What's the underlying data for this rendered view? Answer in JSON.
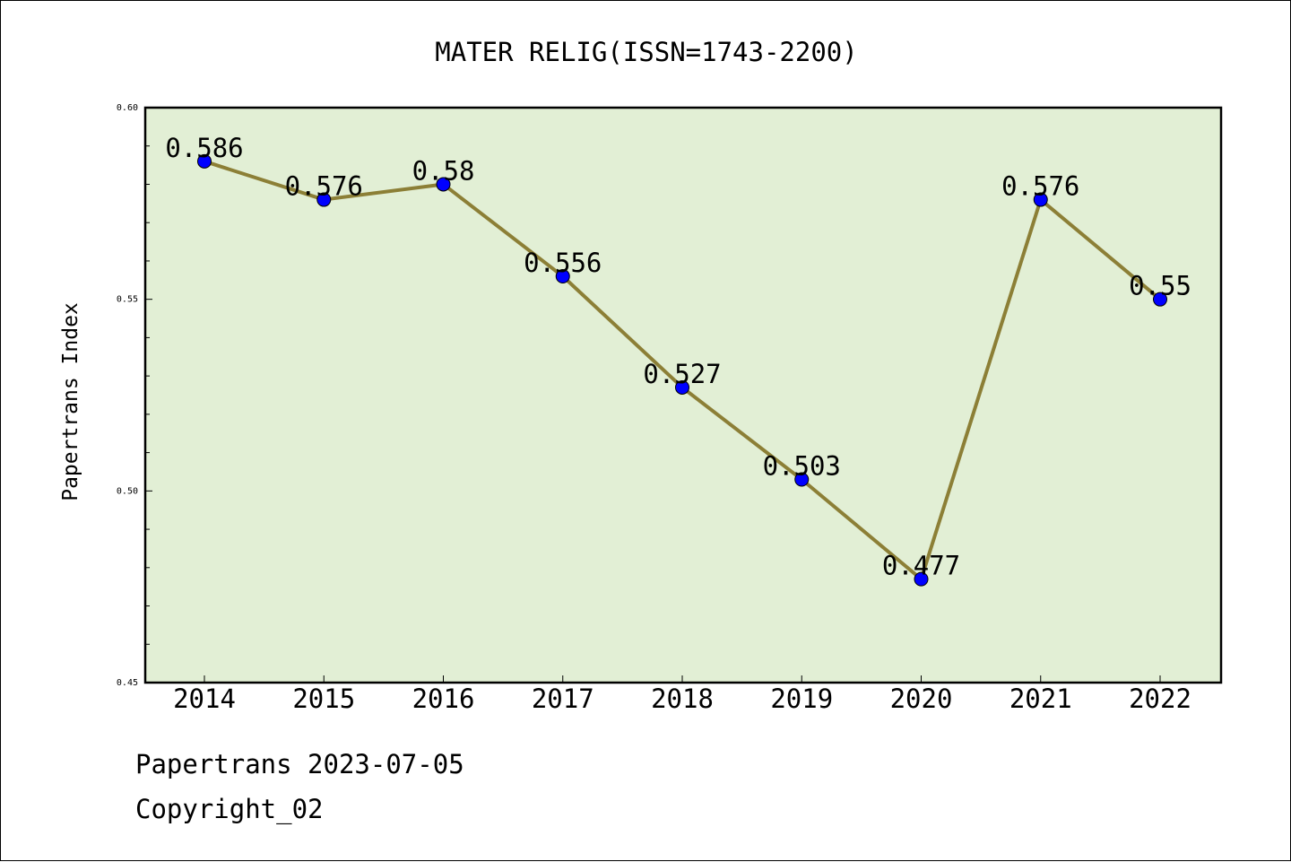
{
  "chart_data": {
    "type": "line",
    "title": "MATER RELIG(ISSN=1743-2200)",
    "xlabel": "",
    "ylabel": "Papertrans Index",
    "categories": [
      "2014",
      "2015",
      "2016",
      "2017",
      "2018",
      "2019",
      "2020",
      "2021",
      "2022"
    ],
    "values": [
      0.586,
      0.576,
      0.58,
      0.556,
      0.527,
      0.503,
      0.477,
      0.576,
      0.55
    ],
    "data_labels": [
      "0.586",
      "0.576",
      "0.58",
      "0.556",
      "0.527",
      "0.503",
      "0.477",
      "0.576",
      "0.55"
    ],
    "ylim": [
      0.45,
      0.6
    ],
    "yticks": [
      "0.45",
      "0.50",
      "0.55",
      "0.60"
    ],
    "grid": false,
    "colors": {
      "line": "#8c7f36",
      "marker": "#0000ff",
      "plot_bg": "#e2efd5"
    }
  },
  "footer": {
    "date_line": "Papertrans 2023-07-05",
    "copyright": "Copyright_02"
  }
}
